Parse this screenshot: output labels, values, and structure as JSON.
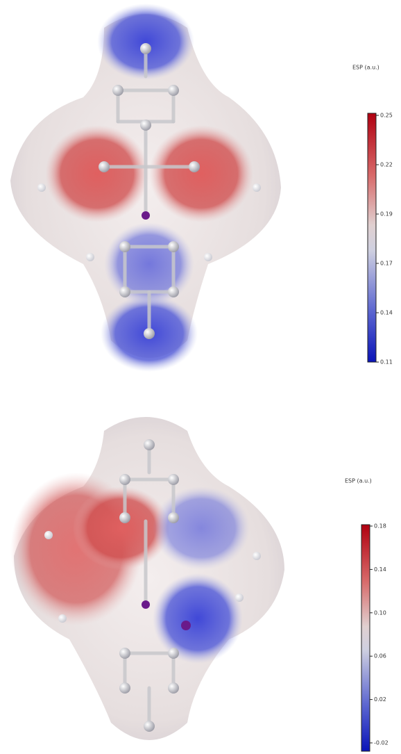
{
  "panels": [
    {
      "colorbar": {
        "title": "ESP (a.u.)",
        "ticks": [
          "0.25",
          "0.22",
          "0.19",
          "0.17",
          "0.14",
          "0.11"
        ]
      }
    },
    {
      "colorbar": {
        "title": "ESP (a.u.)",
        "ticks": [
          "0.18",
          "0.14",
          "0.10",
          "0.06",
          "0.02",
          "-0.02"
        ]
      }
    }
  ]
}
